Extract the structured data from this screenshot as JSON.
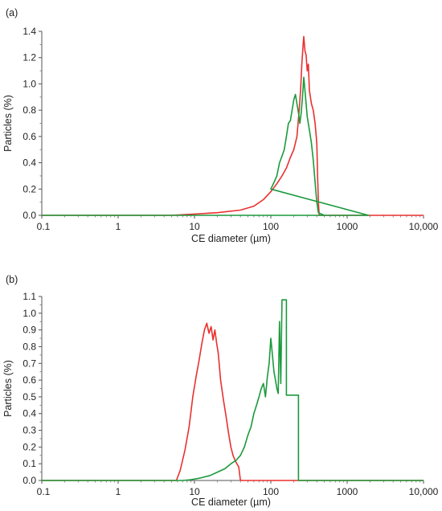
{
  "chart_data": [
    {
      "type": "line",
      "panel_label": "(a)",
      "xlabel": "CE diameter (µm)",
      "ylabel": "Particles (%)",
      "x_scale": "log",
      "xlim": [
        0.1,
        10000
      ],
      "ylim": [
        0,
        1.4
      ],
      "x_ticks": [
        0.1,
        1,
        10,
        100,
        1000,
        10000
      ],
      "x_tick_labels": [
        "0.1",
        "1",
        "10",
        "100",
        "1000",
        "10,000"
      ],
      "y_ticks": [
        0,
        0.2,
        0.4,
        0.6,
        0.8,
        1.0,
        1.2,
        1.4
      ],
      "y_tick_labels": [
        "0.0",
        "0.2",
        "0.4",
        "0.6",
        "0.8",
        "1.0",
        "1.2",
        "1.4"
      ],
      "grid": false,
      "series": [
        {
          "color": "#e8312f",
          "points": [
            [
              0.1,
              0
            ],
            [
              5,
              0
            ],
            [
              10,
              0.01
            ],
            [
              20,
              0.02
            ],
            [
              40,
              0.04
            ],
            [
              60,
              0.07
            ],
            [
              80,
              0.12
            ],
            [
              100,
              0.18
            ],
            [
              120,
              0.24
            ],
            [
              140,
              0.3
            ],
            [
              160,
              0.36
            ],
            [
              180,
              0.44
            ],
            [
              200,
              0.5
            ],
            [
              220,
              0.6
            ],
            [
              235,
              0.8
            ],
            [
              245,
              0.95
            ],
            [
              255,
              1.15
            ],
            [
              265,
              1.3
            ],
            [
              270,
              1.36
            ],
            [
              280,
              1.25
            ],
            [
              290,
              1.22
            ],
            [
              300,
              1.1
            ],
            [
              310,
              1.15
            ],
            [
              320,
              0.95
            ],
            [
              340,
              0.85
            ],
            [
              360,
              0.8
            ],
            [
              380,
              0.7
            ],
            [
              400,
              0.55
            ],
            [
              410,
              0.3
            ],
            [
              420,
              0.1
            ],
            [
              430,
              0
            ],
            [
              10000,
              0
            ]
          ]
        },
        {
          "color": "#1a9a3c",
          "points": [
            [
              0.1,
              0
            ],
            [
              1900,
              0
            ],
            [
              1900,
              0
            ],
            [
              100,
              0.2
            ],
            [
              110,
              0.25
            ],
            [
              120,
              0.3
            ],
            [
              130,
              0.4
            ],
            [
              140,
              0.45
            ],
            [
              150,
              0.5
            ],
            [
              160,
              0.6
            ],
            [
              170,
              0.7
            ],
            [
              180,
              0.72
            ],
            [
              190,
              0.8
            ],
            [
              200,
              0.88
            ],
            [
              210,
              0.92
            ],
            [
              220,
              0.85
            ],
            [
              230,
              0.78
            ],
            [
              240,
              0.7
            ],
            [
              250,
              0.78
            ],
            [
              260,
              0.9
            ],
            [
              270,
              1.05
            ],
            [
              280,
              0.95
            ],
            [
              290,
              0.85
            ],
            [
              300,
              0.75
            ],
            [
              320,
              0.65
            ],
            [
              340,
              0.55
            ],
            [
              360,
              0.42
            ],
            [
              380,
              0.25
            ],
            [
              400,
              0.1
            ],
            [
              420,
              0.02
            ],
            [
              500,
              0
            ]
          ]
        }
      ]
    },
    {
      "type": "line",
      "panel_label": "(b)",
      "xlabel": "CE diameter (µm)",
      "ylabel": "Particles (%)",
      "x_scale": "log",
      "xlim": [
        0.1,
        10000
      ],
      "ylim": [
        0,
        1.1
      ],
      "x_ticks": [
        0.1,
        1,
        10,
        100,
        1000,
        10000
      ],
      "x_tick_labels": [
        "0.1",
        "1",
        "10",
        "100",
        "1000",
        "10,000"
      ],
      "y_ticks": [
        0,
        0.1,
        0.2,
        0.3,
        0.4,
        0.5,
        0.6,
        0.7,
        0.8,
        0.9,
        1.0,
        1.1
      ],
      "y_tick_labels": [
        "0.0",
        "0.1",
        "0.2",
        "0.3",
        "0.4",
        "0.5",
        "0.6",
        "0.7",
        "0.8",
        "0.9",
        "1.0",
        "1.1"
      ],
      "grid": false,
      "series": [
        {
          "color": "#e8312f",
          "points": [
            [
              0.1,
              0
            ],
            [
              5.8,
              0
            ],
            [
              6.5,
              0.06
            ],
            [
              7.5,
              0.18
            ],
            [
              8.5,
              0.32
            ],
            [
              9.5,
              0.5
            ],
            [
              10.5,
              0.62
            ],
            [
              11.5,
              0.72
            ],
            [
              12.5,
              0.82
            ],
            [
              13.5,
              0.9
            ],
            [
              14.5,
              0.94
            ],
            [
              15.5,
              0.88
            ],
            [
              16.5,
              0.92
            ],
            [
              17.5,
              0.84
            ],
            [
              18.5,
              0.9
            ],
            [
              19.5,
              0.82
            ],
            [
              20.5,
              0.76
            ],
            [
              22,
              0.6
            ],
            [
              24,
              0.48
            ],
            [
              26,
              0.38
            ],
            [
              28,
              0.28
            ],
            [
              30,
              0.2
            ],
            [
              32,
              0.15
            ],
            [
              34,
              0.12
            ],
            [
              36,
              0.1
            ],
            [
              38,
              0.08
            ],
            [
              40,
              0
            ],
            [
              10000,
              0
            ]
          ]
        },
        {
          "color": "#1a9a3c",
          "points": [
            [
              0.1,
              0
            ],
            [
              7,
              0
            ],
            [
              9,
              0.005
            ],
            [
              12,
              0.015
            ],
            [
              16,
              0.03
            ],
            [
              20,
              0.05
            ],
            [
              25,
              0.07
            ],
            [
              30,
              0.1
            ],
            [
              35,
              0.12
            ],
            [
              40,
              0.15
            ],
            [
              45,
              0.2
            ],
            [
              50,
              0.27
            ],
            [
              55,
              0.32
            ],
            [
              60,
              0.4
            ],
            [
              65,
              0.45
            ],
            [
              70,
              0.5
            ],
            [
              75,
              0.55
            ],
            [
              80,
              0.58
            ],
            [
              85,
              0.5
            ],
            [
              90,
              0.62
            ],
            [
              95,
              0.7
            ],
            [
              100,
              0.85
            ],
            [
              105,
              0.75
            ],
            [
              110,
              0.65
            ],
            [
              115,
              0.6
            ],
            [
              120,
              0.55
            ],
            [
              125,
              0.52
            ],
            [
              130,
              0.95
            ],
            [
              135,
              0.58
            ],
            [
              140,
              1.08
            ],
            [
              160,
              1.08
            ],
            [
              160,
              0.51
            ],
            [
              230,
              0.51
            ],
            [
              230,
              0
            ],
            [
              10000,
              0
            ]
          ]
        }
      ]
    }
  ]
}
